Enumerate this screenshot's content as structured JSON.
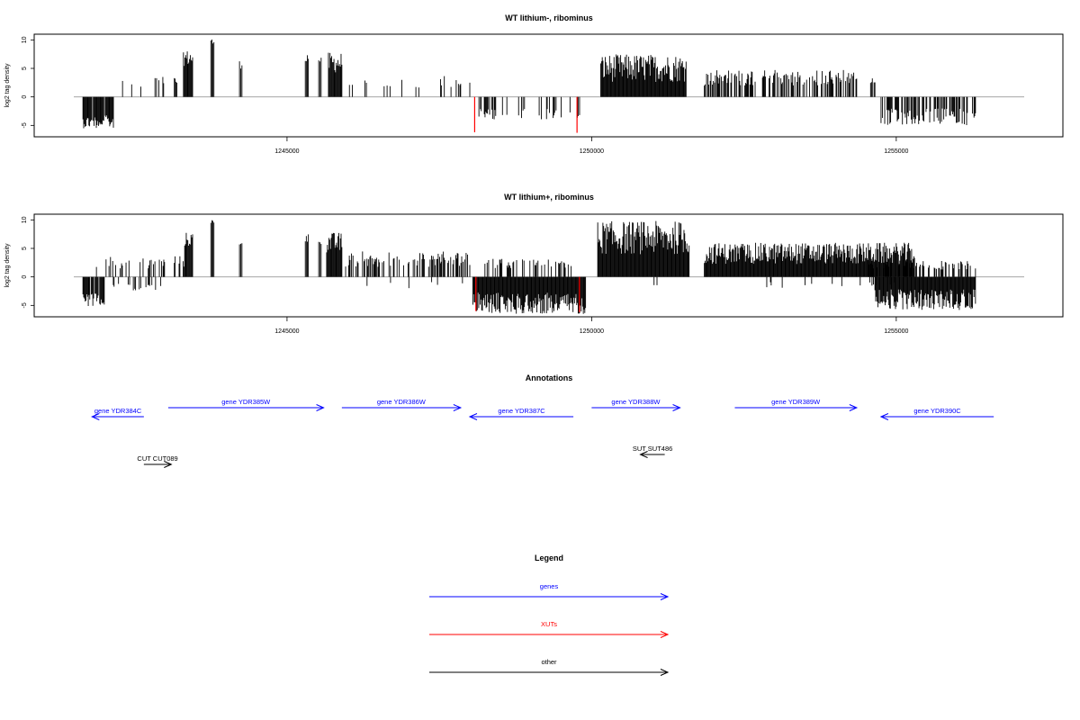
{
  "chart_data": [
    {
      "type": "bar",
      "title": "WT lithium-, ribominus",
      "ylabel": "log2 tag density",
      "ylim": [
        -7,
        11
      ],
      "yticks": [
        "-5",
        "0",
        "5",
        "10"
      ],
      "xlim": [
        1241500,
        1257100
      ],
      "xticks": [
        "1245000",
        "1250000",
        "1255000"
      ],
      "highlight_color": "#ff0000",
      "bar_color": "#000000",
      "segments": [
        {
          "start": 1241650,
          "end": 1242150,
          "sign": -1,
          "lo": 2.5,
          "hi": 5.5,
          "density": 0.9
        },
        {
          "start": 1242300,
          "end": 1242300,
          "sign": 1,
          "lo": 2.8,
          "hi": 2.8,
          "density": 1
        },
        {
          "start": 1242450,
          "end": 1242450,
          "sign": 1,
          "lo": 2.2,
          "hi": 2.2,
          "density": 1
        },
        {
          "start": 1242600,
          "end": 1242600,
          "sign": 1,
          "lo": 1.8,
          "hi": 1.8,
          "density": 1
        },
        {
          "start": 1242820,
          "end": 1243000,
          "sign": 1,
          "lo": 1.5,
          "hi": 3.6,
          "density": 0.4
        },
        {
          "start": 1243150,
          "end": 1243250,
          "sign": 1,
          "lo": 1.5,
          "hi": 3.5,
          "density": 0.5
        },
        {
          "start": 1243300,
          "end": 1243450,
          "sign": 1,
          "lo": 4.5,
          "hi": 8.2,
          "density": 1
        },
        {
          "start": 1243750,
          "end": 1243800,
          "sign": 1,
          "lo": 8.5,
          "hi": 10.3,
          "density": 1
        },
        {
          "start": 1244220,
          "end": 1244260,
          "sign": 1,
          "lo": 4.5,
          "hi": 6.4,
          "density": 1
        },
        {
          "start": 1245300,
          "end": 1245350,
          "sign": 1,
          "lo": 5.5,
          "hi": 7.8,
          "density": 1
        },
        {
          "start": 1245520,
          "end": 1245560,
          "sign": 1,
          "lo": 5.5,
          "hi": 7.0,
          "density": 1
        },
        {
          "start": 1245680,
          "end": 1245900,
          "sign": 1,
          "lo": 3.0,
          "hi": 7.8,
          "density": 1
        },
        {
          "start": 1246000,
          "end": 1247200,
          "sign": 1,
          "lo": 1.0,
          "hi": 3.0,
          "density": 0.1
        },
        {
          "start": 1247350,
          "end": 1247850,
          "sign": 1,
          "lo": 1.0,
          "hi": 3.8,
          "density": 0.12
        },
        {
          "start": 1248000,
          "end": 1248000,
          "sign": 1,
          "lo": 2.5,
          "hi": 2.5,
          "density": 1
        },
        {
          "start": 1248080,
          "end": 1248080,
          "sign": -1,
          "lo": 6.2,
          "hi": 6.2,
          "density": 1,
          "highlight": true
        },
        {
          "start": 1248150,
          "end": 1248450,
          "sign": -1,
          "lo": 1.5,
          "hi": 4.0,
          "density": 0.45
        },
        {
          "start": 1248500,
          "end": 1249850,
          "sign": -1,
          "lo": 1.5,
          "hi": 4.0,
          "density": 0.18
        },
        {
          "start": 1249760,
          "end": 1249760,
          "sign": -1,
          "lo": 6.3,
          "hi": 6.3,
          "density": 1,
          "highlight": true
        },
        {
          "start": 1250150,
          "end": 1251550,
          "sign": 1,
          "lo": 1.0,
          "hi": 7.5,
          "density": 1
        },
        {
          "start": 1251850,
          "end": 1254350,
          "sign": 1,
          "lo": 1.0,
          "hi": 4.8,
          "density": 0.55
        },
        {
          "start": 1254550,
          "end": 1254650,
          "sign": 1,
          "lo": 1.5,
          "hi": 3.3,
          "density": 0.6
        },
        {
          "start": 1254750,
          "end": 1256300,
          "sign": -1,
          "lo": 1.0,
          "hi": 5.0,
          "density": 0.55
        }
      ]
    },
    {
      "type": "bar",
      "title": "WT lithium+, ribominus",
      "ylabel": "log2 tag density",
      "ylim": [
        -7,
        11
      ],
      "yticks": [
        "-5",
        "0",
        "5",
        "10"
      ],
      "xlim": [
        1241500,
        1257100
      ],
      "xticks": [
        "1245000",
        "1250000",
        "1255000"
      ],
      "highlight_color": "#ff0000",
      "bar_color": "#000000",
      "segments": [
        {
          "start": 1241650,
          "end": 1242000,
          "sign": -1,
          "lo": 2.0,
          "hi": 5.2,
          "density": 0.85
        },
        {
          "start": 1241750,
          "end": 1243050,
          "sign": 1,
          "lo": 0.8,
          "hi": 3.5,
          "density": 0.3
        },
        {
          "start": 1242100,
          "end": 1243000,
          "sign": -1,
          "lo": 0.8,
          "hi": 2.5,
          "density": 0.15
        },
        {
          "start": 1243150,
          "end": 1243320,
          "sign": 1,
          "lo": 1.0,
          "hi": 4.0,
          "density": 0.6
        },
        {
          "start": 1243320,
          "end": 1243450,
          "sign": 1,
          "lo": 4.5,
          "hi": 7.8,
          "density": 1
        },
        {
          "start": 1243750,
          "end": 1243800,
          "sign": 1,
          "lo": 8.5,
          "hi": 10.2,
          "density": 1
        },
        {
          "start": 1244220,
          "end": 1244260,
          "sign": 1,
          "lo": 5.0,
          "hi": 6.8,
          "density": 1
        },
        {
          "start": 1245300,
          "end": 1245350,
          "sign": 1,
          "lo": 5.5,
          "hi": 7.6,
          "density": 1
        },
        {
          "start": 1245520,
          "end": 1245560,
          "sign": 1,
          "lo": 5.5,
          "hi": 6.5,
          "density": 1
        },
        {
          "start": 1245650,
          "end": 1245900,
          "sign": 1,
          "lo": 3.0,
          "hi": 7.8,
          "density": 1
        },
        {
          "start": 1245950,
          "end": 1248000,
          "sign": 1,
          "lo": 0.8,
          "hi": 4.5,
          "density": 0.5
        },
        {
          "start": 1246000,
          "end": 1248000,
          "sign": -1,
          "lo": 0.5,
          "hi": 2.0,
          "density": 0.05
        },
        {
          "start": 1248050,
          "end": 1249900,
          "sign": -1,
          "lo": 1.5,
          "hi": 6.5,
          "density": 1
        },
        {
          "start": 1248200,
          "end": 1249700,
          "sign": 1,
          "lo": 0.8,
          "hi": 3.2,
          "density": 0.35
        },
        {
          "start": 1248100,
          "end": 1248100,
          "sign": -1,
          "lo": 6.0,
          "hi": 6.0,
          "density": 1,
          "highlight": true
        },
        {
          "start": 1249800,
          "end": 1249800,
          "sign": -1,
          "lo": 6.2,
          "hi": 6.2,
          "density": 1,
          "highlight": true
        },
        {
          "start": 1250100,
          "end": 1251600,
          "sign": 1,
          "lo": 2.0,
          "hi": 9.8,
          "density": 1
        },
        {
          "start": 1251000,
          "end": 1251800,
          "sign": -1,
          "lo": 0.5,
          "hi": 2.0,
          "density": 0.05
        },
        {
          "start": 1251850,
          "end": 1255300,
          "sign": 1,
          "lo": 1.0,
          "hi": 6.0,
          "density": 1
        },
        {
          "start": 1252500,
          "end": 1255000,
          "sign": -1,
          "lo": 0.5,
          "hi": 2.0,
          "density": 0.07
        },
        {
          "start": 1254500,
          "end": 1256300,
          "sign": 1,
          "lo": 0.8,
          "hi": 2.8,
          "density": 0.35
        },
        {
          "start": 1254650,
          "end": 1256300,
          "sign": -1,
          "lo": 1.0,
          "hi": 5.8,
          "density": 1
        }
      ]
    }
  ],
  "annotations": {
    "title": "Annotations",
    "xlim": [
      1241500,
      1257100
    ],
    "features": [
      {
        "label": "gene YDR384C",
        "color": "#0000ff",
        "strand": "-",
        "start": 1241800,
        "end": 1242650,
        "row": 2
      },
      {
        "label": "gene YDR385W",
        "color": "#0000ff",
        "strand": "+",
        "start": 1243050,
        "end": 1245600,
        "row": 1
      },
      {
        "label": "gene YDR386W",
        "color": "#0000ff",
        "strand": "+",
        "start": 1245900,
        "end": 1247850,
        "row": 1
      },
      {
        "label": "gene YDR387C",
        "color": "#0000ff",
        "strand": "-",
        "start": 1248000,
        "end": 1249700,
        "row": 2
      },
      {
        "label": "gene YDR388W",
        "color": "#0000ff",
        "strand": "+",
        "start": 1250000,
        "end": 1251450,
        "row": 1
      },
      {
        "label": "gene YDR389W",
        "color": "#0000ff",
        "strand": "+",
        "start": 1252350,
        "end": 1254350,
        "row": 1
      },
      {
        "label": "gene YDR390C",
        "color": "#0000ff",
        "strand": "-",
        "start": 1254750,
        "end": 1256600,
        "row": 2
      },
      {
        "label": "CUT CUT089",
        "color": "#000000",
        "strand": "+",
        "start": 1242650,
        "end": 1243100,
        "row": 3
      },
      {
        "label": "SUT SUT486",
        "color": "#000000",
        "strand": "-",
        "start": 1250800,
        "end": 1251200,
        "row": 4
      }
    ]
  },
  "legend": {
    "title": "Legend",
    "items": [
      {
        "label": "genes",
        "color": "#0000ff"
      },
      {
        "label": "XUTs",
        "color": "#ff0000"
      },
      {
        "label": "other",
        "color": "#000000"
      }
    ]
  }
}
